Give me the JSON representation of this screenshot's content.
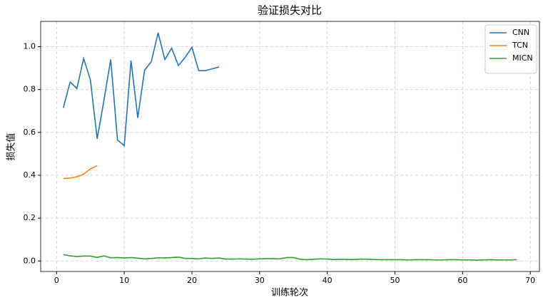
{
  "chart_data": {
    "type": "line",
    "title": "验证损失对比",
    "x_label": "训练轮次",
    "y_label": "损失值",
    "xlim": [
      -2.35,
      71.35
    ],
    "ylim": [
      -0.049,
      1.118
    ],
    "xticks": [
      0,
      10,
      20,
      30,
      40,
      50,
      60,
      70
    ],
    "yticks": [
      {
        "value": 0,
        "label": "0.0"
      },
      0.2,
      0.4,
      0.6,
      0.8,
      {
        "value": 1,
        "label": "1.0"
      }
    ],
    "grid": true,
    "legend": "upper right",
    "series": [
      {
        "name": "CNN",
        "color": "#1f77b4",
        "x": [
          1,
          2,
          3,
          4,
          5,
          6,
          7,
          8,
          9,
          10,
          11,
          12,
          13,
          14,
          15,
          16,
          17,
          18,
          19,
          20,
          21,
          22,
          23,
          24
        ],
        "values": [
          0.715,
          0.835,
          0.805,
          0.945,
          0.845,
          0.57,
          0.75,
          0.94,
          0.565,
          0.538,
          0.935,
          0.668,
          0.89,
          0.93,
          1.065,
          0.94,
          0.993,
          0.912,
          0.95,
          0.997,
          0.888,
          0.888,
          0.897,
          0.905
        ]
      },
      {
        "name": "TCN",
        "color": "#ff7f0e",
        "x": [
          1,
          2,
          3,
          4,
          5,
          6
        ],
        "values": [
          0.385,
          0.387,
          0.393,
          0.405,
          0.43,
          0.445
        ]
      },
      {
        "name": "MICN",
        "color": "#2ca02c",
        "x": [
          1,
          2,
          3,
          4,
          5,
          6,
          7,
          8,
          9,
          10,
          11,
          12,
          13,
          14,
          15,
          16,
          17,
          18,
          19,
          20,
          21,
          22,
          23,
          24,
          25,
          26,
          27,
          28,
          29,
          30,
          31,
          32,
          33,
          34,
          35,
          36,
          37,
          38,
          39,
          40,
          41,
          42,
          43,
          44,
          45,
          46,
          47,
          48,
          49,
          50,
          51,
          52,
          53,
          54,
          55,
          56,
          57,
          58,
          59,
          60,
          61,
          62,
          63,
          64,
          65,
          66,
          67,
          68
        ],
        "values": [
          0.03,
          0.024,
          0.021,
          0.023,
          0.023,
          0.017,
          0.024,
          0.015,
          0.016,
          0.014,
          0.016,
          0.013,
          0.01,
          0.012,
          0.015,
          0.014,
          0.016,
          0.018,
          0.012,
          0.012,
          0.01,
          0.014,
          0.012,
          0.014,
          0.009,
          0.009,
          0.01,
          0.009,
          0.008,
          0.01,
          0.011,
          0.011,
          0.01,
          0.016,
          0.016,
          0.008,
          0.006,
          0.008,
          0.01,
          0.009,
          0.007,
          0.008,
          0.007,
          0.007,
          0.009,
          0.008,
          0.007,
          0.006,
          0.006,
          0.006,
          0.006,
          0.005,
          0.006,
          0.006,
          0.006,
          0.005,
          0.005,
          0.006,
          0.006,
          0.005,
          0.005,
          0.004,
          0.005,
          0.006,
          0.005,
          0.005,
          0.005,
          0.006
        ]
      }
    ]
  }
}
